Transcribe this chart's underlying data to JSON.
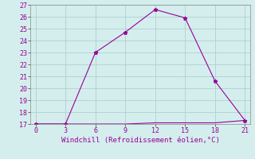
{
  "x_upper": [
    0,
    3,
    6,
    9,
    12,
    15,
    18,
    21
  ],
  "y_upper": [
    17.0,
    17.0,
    23.0,
    24.7,
    26.6,
    25.9,
    20.6,
    17.3
  ],
  "x_lower": [
    0,
    3,
    6,
    9,
    12,
    15,
    18,
    21
  ],
  "y_lower": [
    17.0,
    17.0,
    17.0,
    17.0,
    17.1,
    17.1,
    17.1,
    17.3
  ],
  "line_color": "#990099",
  "bg_color": "#d4eeed",
  "grid_color": "#b0d0d0",
  "xlabel": "Windchill (Refroidissement éolien,°C)",
  "xlim": [
    -0.5,
    21.5
  ],
  "ylim": [
    17,
    27
  ],
  "xticks": [
    0,
    3,
    6,
    9,
    12,
    15,
    18,
    21
  ],
  "yticks": [
    17,
    18,
    19,
    20,
    21,
    22,
    23,
    24,
    25,
    26,
    27
  ],
  "label_fontsize": 6.5,
  "tick_fontsize": 6.0,
  "linewidth": 0.8,
  "markersize": 3.5
}
